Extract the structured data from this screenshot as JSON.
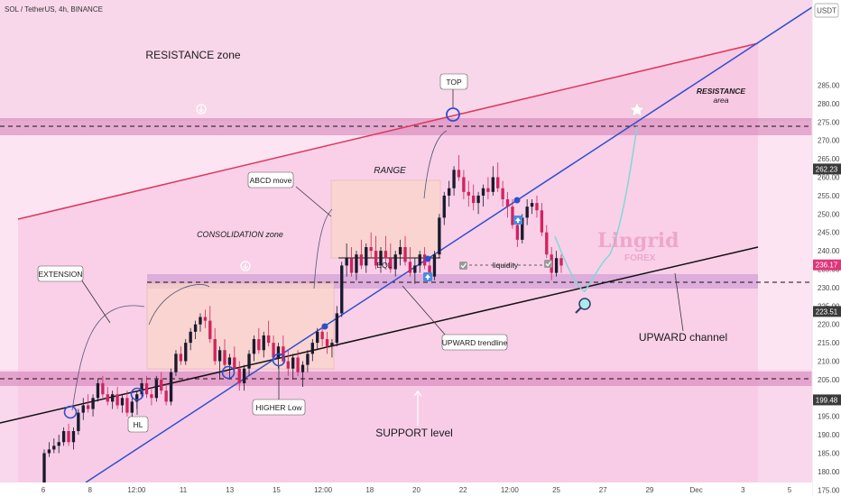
{
  "header": {
    "symbol_title": "SOL / TetherUS, 4h, BINANCE"
  },
  "currency": "USDT",
  "chart_data": {
    "type": "candlestick",
    "title": "SOL / TetherUS, 4h, BINANCE",
    "ylim": [
      175,
      290
    ],
    "y_ticks": [
      175,
      180,
      185,
      190,
      195,
      200,
      205,
      210,
      215,
      220,
      225,
      230,
      235,
      240,
      245,
      250,
      255,
      260,
      265,
      270,
      275,
      280,
      285
    ],
    "x_ticks": [
      "6",
      "8",
      "12:00",
      "11",
      "13",
      "15",
      "12:00",
      "18",
      "20",
      "22",
      "12:00",
      "25",
      "27",
      "29",
      "Dec",
      "3",
      "5"
    ],
    "price_tags": [
      {
        "label": "262.23",
        "value": 262.23,
        "color": "#3a3a3a"
      },
      {
        "label": "236.17",
        "value": 236.17,
        "color": "#e0357a"
      },
      {
        "label": "223.51",
        "value": 223.51,
        "color": "#3a3a3a"
      },
      {
        "label": "199.48",
        "value": 199.48,
        "color": "#3a3a3a"
      }
    ],
    "candles": [
      {
        "o": 177,
        "h": 186,
        "l": 175,
        "c": 185
      },
      {
        "o": 185,
        "h": 188,
        "l": 184,
        "c": 186
      },
      {
        "o": 186,
        "h": 189,
        "l": 185,
        "c": 187
      },
      {
        "o": 187,
        "h": 190,
        "l": 185,
        "c": 188
      },
      {
        "o": 188,
        "h": 192,
        "l": 187,
        "c": 191
      },
      {
        "o": 191,
        "h": 193,
        "l": 187,
        "c": 188
      },
      {
        "o": 188,
        "h": 192,
        "l": 186,
        "c": 191
      },
      {
        "o": 191,
        "h": 197,
        "l": 190,
        "c": 196
      },
      {
        "o": 196,
        "h": 200,
        "l": 194,
        "c": 198
      },
      {
        "o": 198,
        "h": 201,
        "l": 196,
        "c": 197
      },
      {
        "o": 197,
        "h": 201,
        "l": 195,
        "c": 200
      },
      {
        "o": 200,
        "h": 205,
        "l": 199,
        "c": 204
      },
      {
        "o": 204,
        "h": 206,
        "l": 200,
        "c": 201
      },
      {
        "o": 201,
        "h": 203,
        "l": 198,
        "c": 199
      },
      {
        "o": 199,
        "h": 202,
        "l": 197,
        "c": 201
      },
      {
        "o": 201,
        "h": 203,
        "l": 197,
        "c": 198
      },
      {
        "o": 198,
        "h": 201,
        "l": 196,
        "c": 200
      },
      {
        "o": 200,
        "h": 202,
        "l": 195,
        "c": 196
      },
      {
        "o": 196,
        "h": 200,
        "l": 194,
        "c": 199
      },
      {
        "o": 199,
        "h": 202,
        "l": 197,
        "c": 201
      },
      {
        "o": 201,
        "h": 205,
        "l": 200,
        "c": 204
      },
      {
        "o": 204,
        "h": 206,
        "l": 200,
        "c": 201
      },
      {
        "o": 201,
        "h": 203,
        "l": 198,
        "c": 200
      },
      {
        "o": 200,
        "h": 206,
        "l": 199,
        "c": 205
      },
      {
        "o": 205,
        "h": 207,
        "l": 201,
        "c": 202
      },
      {
        "o": 202,
        "h": 204,
        "l": 198,
        "c": 199
      },
      {
        "o": 199,
        "h": 208,
        "l": 198,
        "c": 207
      },
      {
        "o": 207,
        "h": 213,
        "l": 206,
        "c": 212
      },
      {
        "o": 212,
        "h": 214,
        "l": 209,
        "c": 210
      },
      {
        "o": 210,
        "h": 216,
        "l": 209,
        "c": 215
      },
      {
        "o": 215,
        "h": 219,
        "l": 213,
        "c": 218
      },
      {
        "o": 218,
        "h": 221,
        "l": 216,
        "c": 220
      },
      {
        "o": 220,
        "h": 223,
        "l": 218,
        "c": 222
      },
      {
        "o": 222,
        "h": 224,
        "l": 219,
        "c": 221
      },
      {
        "o": 221,
        "h": 225,
        "l": 215,
        "c": 216
      },
      {
        "o": 216,
        "h": 219,
        "l": 209,
        "c": 210
      },
      {
        "o": 210,
        "h": 214,
        "l": 205,
        "c": 213
      },
      {
        "o": 213,
        "h": 216,
        "l": 208,
        "c": 209
      },
      {
        "o": 209,
        "h": 212,
        "l": 205,
        "c": 211
      },
      {
        "o": 211,
        "h": 214,
        "l": 207,
        "c": 208
      },
      {
        "o": 208,
        "h": 210,
        "l": 202,
        "c": 204
      },
      {
        "o": 204,
        "h": 209,
        "l": 202,
        "c": 208
      },
      {
        "o": 208,
        "h": 213,
        "l": 206,
        "c": 212
      },
      {
        "o": 212,
        "h": 217,
        "l": 210,
        "c": 216
      },
      {
        "o": 216,
        "h": 219,
        "l": 212,
        "c": 213
      },
      {
        "o": 213,
        "h": 218,
        "l": 211,
        "c": 217
      },
      {
        "o": 217,
        "h": 221,
        "l": 214,
        "c": 215
      },
      {
        "o": 215,
        "h": 217,
        "l": 210,
        "c": 211
      },
      {
        "o": 211,
        "h": 215,
        "l": 208,
        "c": 214
      },
      {
        "o": 214,
        "h": 217,
        "l": 209,
        "c": 210
      },
      {
        "o": 210,
        "h": 213,
        "l": 206,
        "c": 208
      },
      {
        "o": 208,
        "h": 212,
        "l": 205,
        "c": 211
      },
      {
        "o": 211,
        "h": 213,
        "l": 206,
        "c": 207
      },
      {
        "o": 207,
        "h": 210,
        "l": 203,
        "c": 209
      },
      {
        "o": 209,
        "h": 213,
        "l": 207,
        "c": 212
      },
      {
        "o": 212,
        "h": 216,
        "l": 210,
        "c": 215
      },
      {
        "o": 215,
        "h": 219,
        "l": 213,
        "c": 218
      },
      {
        "o": 218,
        "h": 220,
        "l": 214,
        "c": 216
      },
      {
        "o": 216,
        "h": 218,
        "l": 212,
        "c": 214
      },
      {
        "o": 214,
        "h": 216,
        "l": 211,
        "c": 215
      },
      {
        "o": 215,
        "h": 225,
        "l": 214,
        "c": 223
      },
      {
        "o": 223,
        "h": 237,
        "l": 222,
        "c": 236
      },
      {
        "o": 236,
        "h": 242,
        "l": 233,
        "c": 238
      },
      {
        "o": 238,
        "h": 241,
        "l": 233,
        "c": 234
      },
      {
        "o": 234,
        "h": 240,
        "l": 232,
        "c": 239
      },
      {
        "o": 239,
        "h": 243,
        "l": 235,
        "c": 236
      },
      {
        "o": 236,
        "h": 242,
        "l": 234,
        "c": 241
      },
      {
        "o": 241,
        "h": 245,
        "l": 238,
        "c": 240
      },
      {
        "o": 240,
        "h": 244,
        "l": 235,
        "c": 236
      },
      {
        "o": 236,
        "h": 241,
        "l": 234,
        "c": 240
      },
      {
        "o": 240,
        "h": 244,
        "l": 236,
        "c": 238
      },
      {
        "o": 238,
        "h": 242,
        "l": 234,
        "c": 235
      },
      {
        "o": 235,
        "h": 240,
        "l": 233,
        "c": 239
      },
      {
        "o": 239,
        "h": 243,
        "l": 236,
        "c": 241
      },
      {
        "o": 241,
        "h": 244,
        "l": 236,
        "c": 237
      },
      {
        "o": 237,
        "h": 241,
        "l": 233,
        "c": 234
      },
      {
        "o": 234,
        "h": 238,
        "l": 231,
        "c": 236
      },
      {
        "o": 236,
        "h": 240,
        "l": 234,
        "c": 239
      },
      {
        "o": 239,
        "h": 241,
        "l": 235,
        "c": 236
      },
      {
        "o": 236,
        "h": 238,
        "l": 232,
        "c": 233
      },
      {
        "o": 233,
        "h": 240,
        "l": 232,
        "c": 239
      },
      {
        "o": 239,
        "h": 250,
        "l": 238,
        "c": 249
      },
      {
        "o": 249,
        "h": 256,
        "l": 247,
        "c": 255
      },
      {
        "o": 255,
        "h": 259,
        "l": 252,
        "c": 257
      },
      {
        "o": 257,
        "h": 263,
        "l": 255,
        "c": 262
      },
      {
        "o": 262,
        "h": 266,
        "l": 259,
        "c": 260
      },
      {
        "o": 260,
        "h": 262,
        "l": 254,
        "c": 256
      },
      {
        "o": 256,
        "h": 259,
        "l": 252,
        "c": 255
      },
      {
        "o": 255,
        "h": 258,
        "l": 251,
        "c": 253
      },
      {
        "o": 253,
        "h": 256,
        "l": 250,
        "c": 255
      },
      {
        "o": 255,
        "h": 258,
        "l": 252,
        "c": 257
      },
      {
        "o": 257,
        "h": 260,
        "l": 254,
        "c": 256
      },
      {
        "o": 256,
        "h": 263,
        "l": 255,
        "c": 260
      },
      {
        "o": 260,
        "h": 264,
        "l": 256,
        "c": 257
      },
      {
        "o": 257,
        "h": 259,
        "l": 252,
        "c": 254
      },
      {
        "o": 254,
        "h": 256,
        "l": 249,
        "c": 252
      },
      {
        "o": 252,
        "h": 254,
        "l": 246,
        "c": 247
      },
      {
        "o": 247,
        "h": 249,
        "l": 241,
        "c": 243
      },
      {
        "o": 243,
        "h": 250,
        "l": 242,
        "c": 249
      },
      {
        "o": 249,
        "h": 254,
        "l": 247,
        "c": 252
      },
      {
        "o": 252,
        "h": 254,
        "l": 250,
        "c": 253
      },
      {
        "o": 253,
        "h": 255,
        "l": 249,
        "c": 251
      },
      {
        "o": 251,
        "h": 253,
        "l": 244,
        "c": 245
      },
      {
        "o": 245,
        "h": 247,
        "l": 238,
        "c": 239
      },
      {
        "o": 239,
        "h": 241,
        "l": 232,
        "c": 234
      },
      {
        "o": 234,
        "h": 240,
        "l": 233,
        "c": 238
      },
      {
        "o": 238,
        "h": 239,
        "l": 234,
        "c": 236
      }
    ],
    "annotations": {
      "resistance_zone": "RESISTANCE zone",
      "resistance_area_1": "RESISTANCE",
      "resistance_area_2": "area",
      "consolidation_zone": "CONSOLIDATION zone",
      "range": "RANGE",
      "top": "TOP",
      "abcd_move": "ABCD move",
      "extension": "EXTENSION",
      "eql": "EQL",
      "liquidity": "liquidity",
      "upward_trendline": "UPWARD trendline",
      "upward_channel": "UPWARD channel",
      "hl": "HL",
      "higher_low": "HIGHER Low",
      "support_level": "SUPPORT level",
      "watermark": "Lingrid",
      "watermark_sub": "FOREX"
    }
  },
  "colors": {
    "bg": "#fce4f3",
    "bull": "#1a1a2e",
    "bear": "#d0245e",
    "resistance_band": "#d47ab3",
    "trend_blue": "#2d4fd0",
    "channel_black": "#111111",
    "resistance_red": "#e0355a",
    "projection": "#7fd8d8"
  }
}
